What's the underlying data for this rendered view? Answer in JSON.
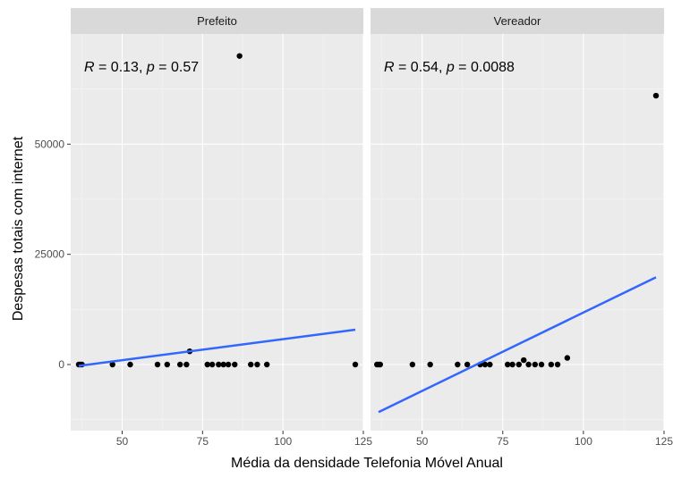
{
  "chart_data": {
    "type": "scatter",
    "xlabel": "Média da densidade Telefonia Móvel Anual",
    "ylabel": "Despesas totais com internet",
    "xlim": [
      34,
      125
    ],
    "ylim": [
      -15000,
      75000
    ],
    "x_ticks": [
      50,
      75,
      100,
      125
    ],
    "y_ticks": [
      0,
      25000,
      50000
    ],
    "grid": true,
    "legend": "none",
    "colors": {
      "points": "#000000",
      "fit_line": "#3366ff",
      "panel": "#ebebeb",
      "strip": "#d9d9d9"
    },
    "panels": [
      {
        "label": "Prefeito",
        "annotation": {
          "r_label": "R",
          "r_text": " = 0.13, ",
          "p_label": "p",
          "p_text": " = 0.57"
        },
        "fit": {
          "x": [
            36.5,
            122.5
          ],
          "y": [
            -300,
            7900
          ]
        },
        "points": [
          [
            36.5,
            0
          ],
          [
            37.0,
            0
          ],
          [
            37.5,
            0
          ],
          [
            47,
            0
          ],
          [
            52.5,
            0
          ],
          [
            61,
            0
          ],
          [
            64,
            0
          ],
          [
            68,
            0
          ],
          [
            70,
            0
          ],
          [
            71,
            3000
          ],
          [
            76.5,
            0
          ],
          [
            78,
            0
          ],
          [
            80,
            0
          ],
          [
            81.5,
            0
          ],
          [
            83,
            0
          ],
          [
            85,
            0
          ],
          [
            86.5,
            70000
          ],
          [
            90,
            0
          ],
          [
            92,
            0
          ],
          [
            95,
            0
          ],
          [
            122.5,
            0
          ]
        ]
      },
      {
        "label": "Vereador",
        "annotation": {
          "r_label": "R",
          "r_text": " = 0.54, ",
          "p_label": "p",
          "p_text": " = 0.0088"
        },
        "fit": {
          "x": [
            36.5,
            122.5
          ],
          "y": [
            -10800,
            19800
          ]
        },
        "points": [
          [
            36.0,
            0
          ],
          [
            36.5,
            0
          ],
          [
            37.0,
            0
          ],
          [
            47,
            0
          ],
          [
            52.5,
            0
          ],
          [
            61,
            0
          ],
          [
            64,
            0
          ],
          [
            68,
            0
          ],
          [
            69.5,
            0
          ],
          [
            71,
            0
          ],
          [
            76.5,
            0
          ],
          [
            78,
            0
          ],
          [
            80,
            0
          ],
          [
            81.5,
            1000
          ],
          [
            83,
            0
          ],
          [
            85,
            0
          ],
          [
            87,
            0
          ],
          [
            90,
            0
          ],
          [
            92,
            0
          ],
          [
            95,
            1500
          ],
          [
            122.5,
            61000
          ]
        ]
      }
    ]
  }
}
